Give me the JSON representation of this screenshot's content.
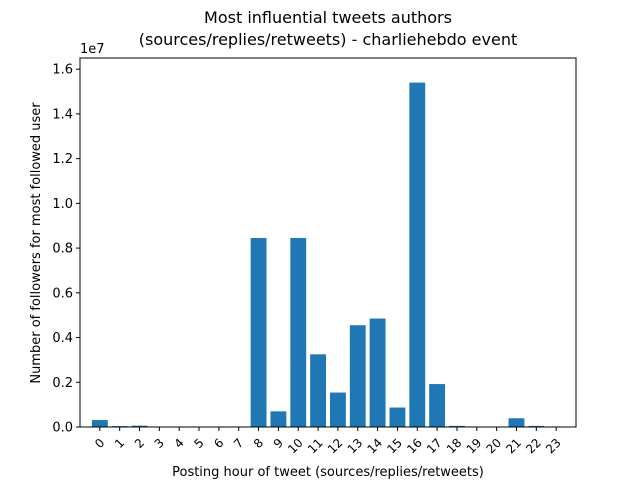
{
  "chart_data": {
    "type": "bar",
    "title_line1": "Most influential tweets authors",
    "title_line2": "(sources/replies/retweets) - charliehebdo event",
    "xlabel": "Posting hour of tweet (sources/replies/retweets)",
    "ylabel": "Number of followers for most followed user",
    "y_offset_label": "1e7",
    "categories": [
      "0",
      "1",
      "2",
      "3",
      "4",
      "5",
      "6",
      "7",
      "8",
      "9",
      "10",
      "11",
      "12",
      "13",
      "14",
      "15",
      "16",
      "17",
      "18",
      "19",
      "20",
      "21",
      "22",
      "23"
    ],
    "values": [
      310000,
      40000,
      60000,
      8000,
      6000,
      5000,
      5000,
      3000,
      8450000,
      700000,
      8450000,
      3250000,
      1540000,
      4550000,
      4850000,
      870000,
      15400000,
      1920000,
      50000,
      10000,
      8000,
      390000,
      50000,
      8000
    ],
    "ylim": [
      0,
      16500000
    ],
    "y_ticks": [
      0,
      2000000,
      4000000,
      6000000,
      8000000,
      10000000,
      12000000,
      14000000,
      16000000
    ],
    "y_tick_labels": [
      "0.0",
      "0.2",
      "0.4",
      "0.6",
      "0.8",
      "1.0",
      "1.2",
      "1.4",
      "1.6"
    ],
    "bar_color": "#1f77b4",
    "grid": false,
    "legend": "none"
  }
}
